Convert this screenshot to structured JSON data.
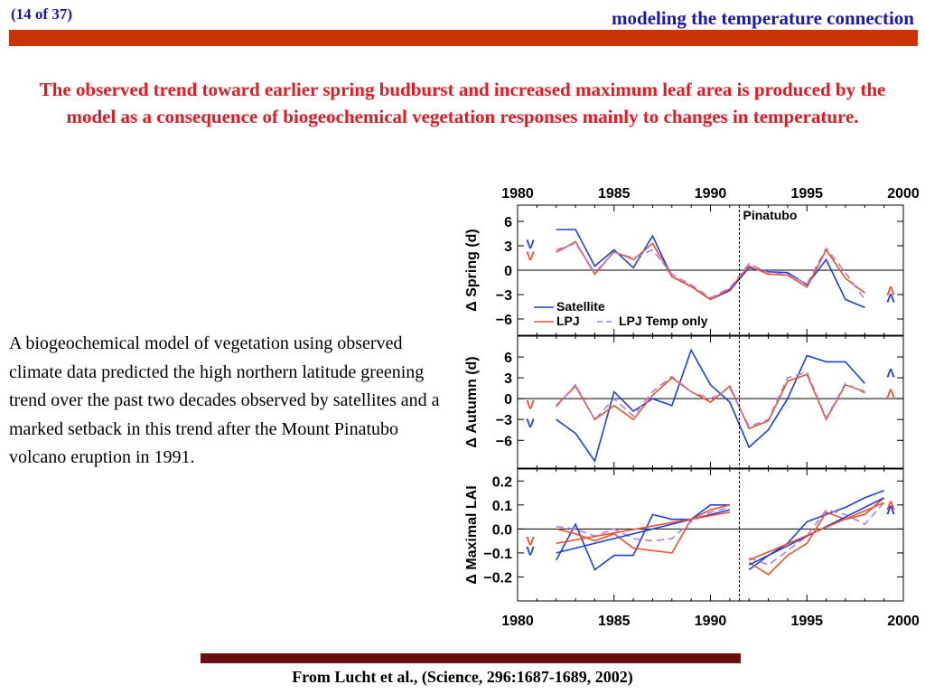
{
  "header": {
    "counter": "(14 of 37)",
    "title": "modeling the temperature connection"
  },
  "headline": "The observed trend toward earlier spring budburst and increased maximum leaf area is produced by the model as a consequence of biogeochemical vegetation responses mainly to changes in temperature.",
  "body_text": "A biogeochemical model of vegetation using observed climate data predicted the high northern latitude greening trend over the past two decades observed by satellites and a marked setback in this trend after the Mount Pinatubo volcano eruption in 1991.",
  "citation": "From Lucht et al., (Science, 296:1687-1689, 2002)",
  "colors": {
    "accent_bar": "#cc3300",
    "headline": "#e01b24",
    "header_text": "#1a1aa6",
    "citation_bar": "#6b1010",
    "satellite": "#1f3fe0",
    "lpj": "#f0502a",
    "lpj_temp_only": "#b07ae0"
  },
  "chart_data": [
    {
      "type": "line",
      "panel": "spring",
      "ylabel": "Δ Spring (d)",
      "x_tick_labels": [
        "1980",
        "1985",
        "1990",
        "1995",
        "2000"
      ],
      "xlim": [
        1980,
        2000
      ],
      "ylim": [
        -8,
        8
      ],
      "yticks": [
        6,
        3,
        0,
        -3,
        -6
      ],
      "ytick_labels": [
        "6",
        "3",
        "0",
        "−3",
        "−6"
      ],
      "annotation": {
        "text": "Pinatubo",
        "x": 1991.5
      },
      "legend": [
        "Satellite",
        "LPJ",
        "LPJ Temp only"
      ],
      "series": [
        {
          "name": "Satellite",
          "color": "#1f3fe0",
          "dash": "",
          "x": [
            1982,
            1983,
            1984,
            1985,
            1986,
            1987,
            1988,
            1989,
            1990,
            1991,
            1992,
            1993,
            1994,
            1995,
            1996,
            1997,
            1998,
            1999
          ],
          "y": [
            5,
            5,
            0.5,
            2.5,
            0.3,
            4.2,
            -0.8,
            -2,
            -3.6,
            -2.5,
            0.3,
            -0.2,
            -0.3,
            -1.8,
            1.3,
            -3.6,
            -4.6,
            null
          ]
        },
        {
          "name": "LPJ",
          "color": "#f0502a",
          "dash": "",
          "x": [
            1982,
            1983,
            1984,
            1985,
            1986,
            1987,
            1988,
            1989,
            1990,
            1991,
            1992,
            1993,
            1994,
            1995,
            1996,
            1997,
            1998,
            1999
          ],
          "y": [
            2.2,
            3.5,
            -0.5,
            2.3,
            1.3,
            3.3,
            -0.8,
            -2,
            -3.6,
            -2.3,
            0.5,
            -0.5,
            -0.6,
            -2.1,
            2.5,
            -1,
            -2.8,
            null
          ]
        },
        {
          "name": "LPJ Temp only",
          "color": "#b07ae0",
          "dash": "8,5",
          "x": [
            1982,
            1983,
            1984,
            1985,
            1986,
            1987,
            1988,
            1989,
            1990,
            1991,
            1992,
            1993,
            1994,
            1995,
            1996,
            1997,
            1998,
            1999
          ],
          "y": [
            2.5,
            3.3,
            -0.3,
            2.2,
            1.5,
            2.5,
            -0.5,
            -1.8,
            -3.4,
            -2.2,
            0.8,
            -0.3,
            -0.5,
            -1.7,
            2.7,
            -0.3,
            -3.6,
            null
          ]
        }
      ],
      "markers": {
        "left": [
          {
            "glyph": "V",
            "color": "#1f3fe0",
            "y": 3.2
          },
          {
            "glyph": "V",
            "color": "#f0502a",
            "y": 1.8
          }
        ],
        "right": [
          {
            "glyph": "Λ",
            "color": "#f0502a",
            "y": -2.5
          },
          {
            "glyph": "Λ",
            "color": "#1f3fe0",
            "y": -3.4
          }
        ]
      }
    },
    {
      "type": "line",
      "panel": "autumn",
      "ylabel": "Δ Autumn (d)",
      "xlim": [
        1980,
        2000
      ],
      "ylim": [
        -10,
        9
      ],
      "yticks": [
        6,
        3,
        0,
        -3,
        -6
      ],
      "ytick_labels": [
        "6",
        "3",
        "0",
        "−3",
        "−6"
      ],
      "series": [
        {
          "name": "Satellite",
          "color": "#1f3fe0",
          "dash": "",
          "x": [
            1982,
            1983,
            1984,
            1985,
            1986,
            1987,
            1988,
            1989,
            1990,
            1991,
            1992,
            1993,
            1994,
            1995,
            1996,
            1997,
            1998,
            1999
          ],
          "y": [
            -3,
            -5,
            -9,
            1,
            -1.8,
            0,
            -1,
            7,
            2,
            -0.5,
            -7,
            -4.5,
            0,
            6.2,
            5.3,
            5.3,
            2.2,
            null
          ]
        },
        {
          "name": "LPJ",
          "color": "#f0502a",
          "dash": "",
          "x": [
            1982,
            1983,
            1984,
            1985,
            1986,
            1987,
            1988,
            1989,
            1990,
            1991,
            1992,
            1993,
            1994,
            1995,
            1996,
            1997,
            1998,
            1999
          ],
          "y": [
            -1,
            1.8,
            -3,
            -1,
            -3,
            0.5,
            3,
            1,
            -0.5,
            1.8,
            -4.3,
            -3.2,
            2.5,
            3.5,
            -3,
            2,
            1,
            null
          ]
        },
        {
          "name": "LPJ Temp only",
          "color": "#b07ae0",
          "dash": "8,5",
          "x": [
            1982,
            1983,
            1984,
            1985,
            1986,
            1987,
            1988,
            1989,
            1990,
            1991,
            1992,
            1993,
            1994,
            1995,
            1996,
            1997,
            1998,
            1999
          ],
          "y": [
            -1.2,
            2,
            -3,
            0,
            -2.5,
            1,
            3.2,
            1,
            0,
            1.5,
            -4,
            -3,
            3,
            3.8,
            -2.8,
            2.2,
            0.8,
            null
          ]
        }
      ],
      "markers": {
        "left": [
          {
            "glyph": "V",
            "color": "#f0502a",
            "y": -0.8
          },
          {
            "glyph": "V",
            "color": "#1f3fe0",
            "y": -3.5
          }
        ],
        "right": [
          {
            "glyph": "Λ",
            "color": "#1f3fe0",
            "y": 3.7
          },
          {
            "glyph": "Λ",
            "color": "#f0502a",
            "y": 0.8
          }
        ]
      }
    },
    {
      "type": "line",
      "panel": "maximal-lai",
      "ylabel": "Δ Maximal LAI",
      "xlim": [
        1980,
        2000
      ],
      "ylim": [
        -0.3,
        0.25
      ],
      "yticks": [
        0.2,
        0.1,
        0.0,
        -0.1,
        -0.2
      ],
      "ytick_labels": [
        "0.2",
        "0.1",
        "0.0",
        "−0.1",
        "−0.2"
      ],
      "series": [
        {
          "name": "Satellite",
          "color": "#1f3fe0",
          "dash": "",
          "x": [
            1982,
            1983,
            1984,
            1985,
            1986,
            1987,
            1988,
            1989,
            1990,
            1991,
            1991.6,
            1992,
            1993,
            1994,
            1995,
            1996,
            1997,
            1998,
            1999
          ],
          "y": [
            -0.13,
            0.02,
            -0.17,
            -0.11,
            -0.11,
            0.06,
            0.04,
            0.04,
            0.1,
            0.1,
            null,
            -0.17,
            -0.11,
            -0.06,
            0.03,
            0.06,
            0.09,
            0.13,
            0.16
          ]
        },
        {
          "name": "LPJ",
          "color": "#f0502a",
          "dash": "",
          "x": [
            1982,
            1983,
            1984,
            1985,
            1986,
            1987,
            1988,
            1989,
            1990,
            1991,
            1991.6,
            1992,
            1993,
            1994,
            1995,
            1996,
            1997,
            1998,
            1999
          ],
          "y": [
            0,
            -0.02,
            -0.05,
            -0.02,
            -0.08,
            -0.09,
            -0.1,
            0.04,
            0.08,
            0.1,
            null,
            -0.14,
            -0.19,
            -0.11,
            -0.06,
            0.07,
            0.04,
            0.06,
            0.13
          ]
        },
        {
          "name": "LPJ Temp only",
          "color": "#b07ae0",
          "dash": "8,5",
          "x": [
            1982,
            1983,
            1984,
            1985,
            1986,
            1987,
            1988,
            1989,
            1990,
            1991,
            1991.6,
            1992,
            1993,
            1994,
            1995,
            1996,
            1997,
            1998,
            1999
          ],
          "y": [
            0.01,
            0,
            -0.03,
            0,
            -0.04,
            -0.05,
            -0.04,
            0.03,
            0.07,
            0.09,
            null,
            -0.12,
            -0.15,
            -0.09,
            -0.03,
            0.08,
            0.06,
            0.02,
            0.11
          ]
        },
        {
          "name": "Satellite trend 1982-1991",
          "color": "#1f3fe0",
          "dash": "",
          "x": [
            1982,
            1991
          ],
          "y": [
            -0.1,
            0.08
          ]
        },
        {
          "name": "LPJ trend 1982-1991",
          "color": "#f0502a",
          "dash": "",
          "x": [
            1982,
            1991
          ],
          "y": [
            -0.06,
            0.07
          ]
        },
        {
          "name": "Satellite trend 1992-1999",
          "color": "#1f3fe0",
          "dash": "",
          "x": [
            1992,
            1999
          ],
          "y": [
            -0.15,
            0.13
          ]
        },
        {
          "name": "LPJ trend 1992-1999",
          "color": "#f0502a",
          "dash": "",
          "x": [
            1992,
            1999
          ],
          "y": [
            -0.13,
            0.11
          ]
        }
      ],
      "markers": {
        "left": [
          {
            "glyph": "V",
            "color": "#f0502a",
            "y": -0.05
          },
          {
            "glyph": "V",
            "color": "#1f3fe0",
            "y": -0.09
          }
        ],
        "right": [
          {
            "glyph": "Λ",
            "color": "#f0502a",
            "y": 0.1
          },
          {
            "glyph": "Λ",
            "color": "#1f3fe0",
            "y": 0.08
          }
        ]
      }
    }
  ]
}
